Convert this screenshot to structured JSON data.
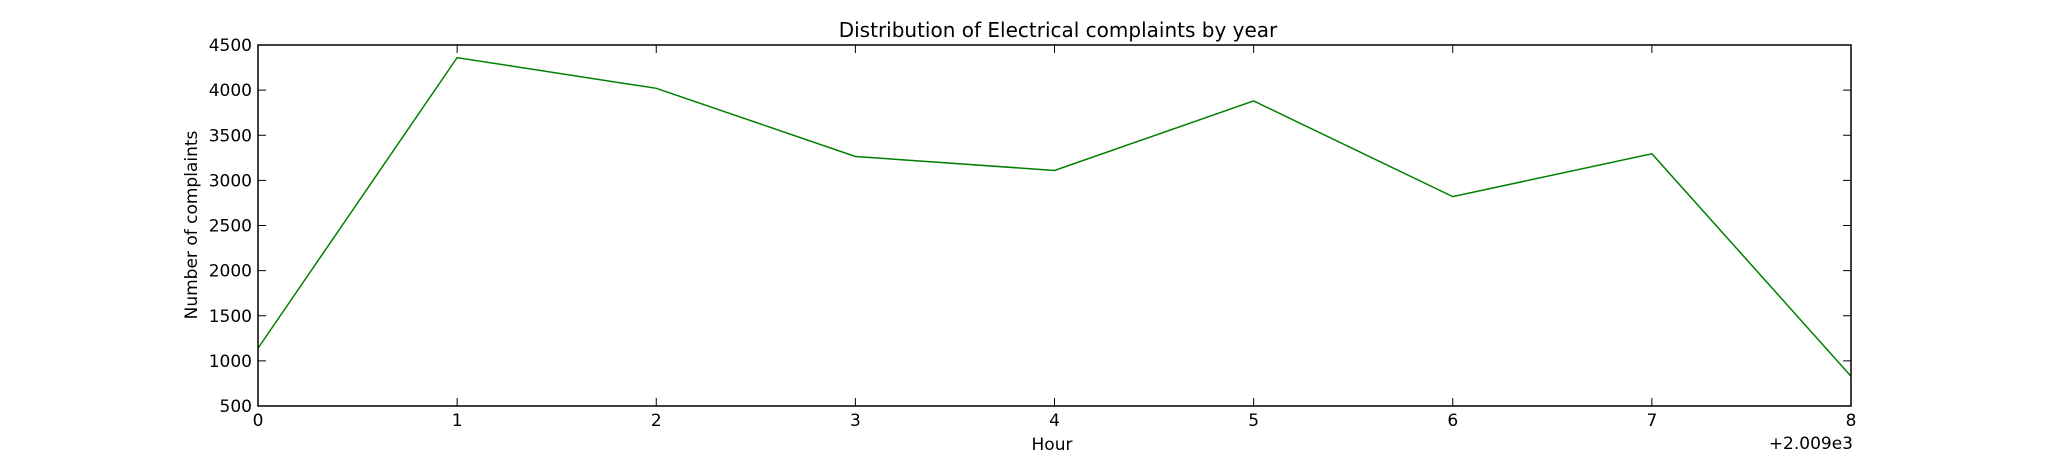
{
  "chart_data": {
    "type": "line",
    "title": "Distribution of  Electrical complaints by year",
    "xlabel": "Hour",
    "ylabel": "Number of complaints",
    "x_offset_label": "+2.009e3",
    "x": [
      0,
      1,
      2,
      3,
      4,
      5,
      6,
      7,
      8
    ],
    "x_tick_labels": [
      "0",
      "1",
      "2",
      "3",
      "4",
      "5",
      "6",
      "7",
      "8"
    ],
    "y_tick_labels": [
      "500",
      "1000",
      "1500",
      "2000",
      "2500",
      "3000",
      "3500",
      "4000",
      "4500"
    ],
    "y_ticks": [
      500,
      1000,
      1500,
      2000,
      2500,
      3000,
      3500,
      4000,
      4500
    ],
    "xlim": [
      0,
      8
    ],
    "ylim": [
      500,
      4500
    ],
    "grid": false,
    "series": [
      {
        "values": [
          1140,
          4360,
          4020,
          3265,
          3110,
          3880,
          2820,
          3295,
          830
        ],
        "color": "#008000"
      }
    ]
  }
}
